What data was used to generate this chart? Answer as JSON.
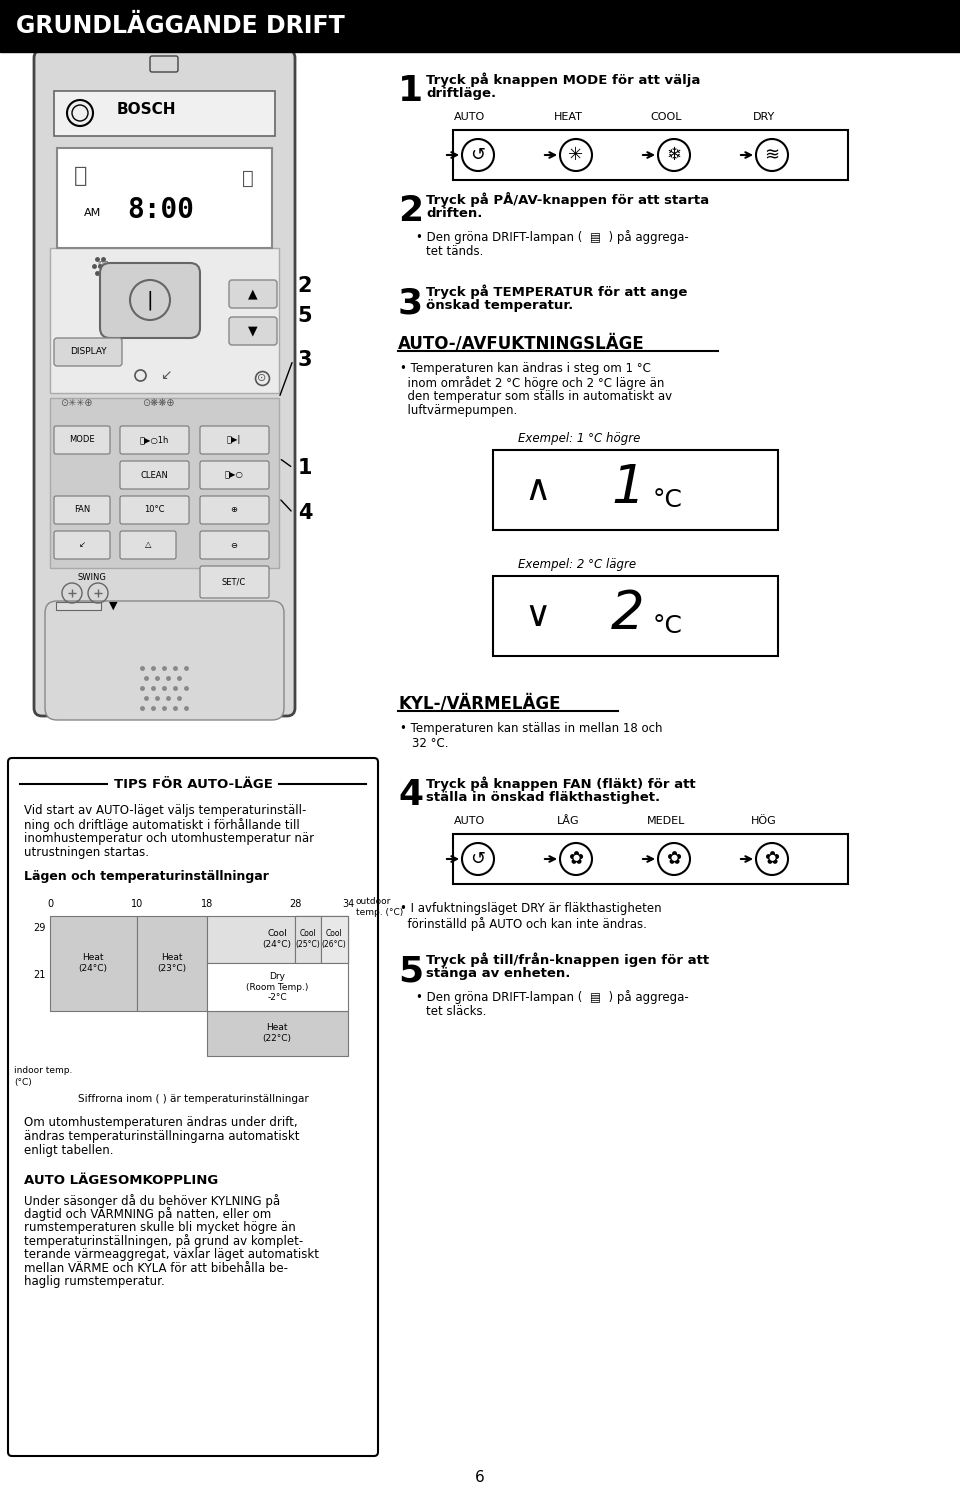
{
  "title": "GRUNDLÄGGANDE DRIFT",
  "title_bg": "#000000",
  "title_color": "#ffffff",
  "page_bg": "#ffffff",
  "page_number": "6",
  "step1_text1": "Tryck på knappen MODE för att välja",
  "step1_text2": "driftläge.",
  "step1_modes": [
    "AUTO",
    "HEAT",
    "COOL",
    "DRY"
  ],
  "step2_text1": "Tryck på PÅ/AV-knappen för att starta",
  "step2_text2": "driften.",
  "step2_bullet1": "Den gröna DRIFT-lampan (  ▤  ) på aggrega-",
  "step2_bullet2": "tet tänds.",
  "step3_text1": "Tryck på TEMPERATUR för att ange",
  "step3_text2": "önskad temperatur.",
  "auto_heading": "AUTO-/AVFUKTNINGSLÄGE",
  "auto_bullet1": "Temperaturen kan ändras i steg om 1 °C",
  "auto_bullet2": "inom området 2 °C högre och 2 °C lägre än",
  "auto_bullet3": "den temperatur som ställs in automatiskt av",
  "auto_bullet4": "luftvärmepumpen.",
  "example1_label": "Exempel: 1 °C högre",
  "example2_label": "Exempel: 2 °C lägre",
  "kyl_heading": "KYL-/VÄRMELÄGE",
  "kyl_bullet1": "Temperaturen kan ställas in mellan 18 och",
  "kyl_bullet2": "32 °C.",
  "step4_text1": "Tryck på knappen FAN (fläkt) för att",
  "step4_text2": "ställa in önskad fläkthastighet.",
  "fan_modes": [
    "AUTO",
    "LÅG",
    "MEDEL",
    "HÖG"
  ],
  "fan_note1": "• I avfuktningsläget DRY är fläkthastigheten",
  "fan_note2": "  förinställd på AUTO och kan inte ändras.",
  "step5_text1": "Tryck på till/från-knappen igen för att",
  "step5_text2": "stänga av enheten.",
  "step5_bullet1": "Den gröna DRIFT-lampan (  ▤  ) på aggrega-",
  "step5_bullet2": "tet släcks.",
  "tips_heading": "TIPS FÖR AUTO-LÄGE",
  "tips_body1": "Vid start av AUTO-läget väljs temperaturinställ-",
  "tips_body2": "ning och driftläge automatiskt i förhållande till",
  "tips_body3": "inomhustemperatur och utomhustemperatur när",
  "tips_body4": "utrustningen startas.",
  "chart_heading": "Lägen och temperaturinställningar",
  "siffror_note": "Siffrorna inom ( ) är temperaturinställningar",
  "outdoor_ch1": "Om utomhustemperaturen ändras under drift,",
  "outdoor_ch2": "ändras temperaturinställningarna automatiskt",
  "outdoor_ch3": "enligt tabellen.",
  "auto_switch_heading": "AUTO LÄGESOMKOPPLING",
  "auto_sw1": "Under säsonger då du behöver KYLNING på",
  "auto_sw2": "dagtid och VÄRMNING på natten, eller om",
  "auto_sw3": "rumstemperaturen skulle bli mycket högre än",
  "auto_sw4": "temperaturinställningen, på grund av komplet-",
  "auto_sw5": "terande värmeaggregat, växlar läget automatiskt",
  "auto_sw6": "mellan VÄRME och KYLA för att bibehålla be-",
  "auto_sw7": "haglig rumstemperatur."
}
